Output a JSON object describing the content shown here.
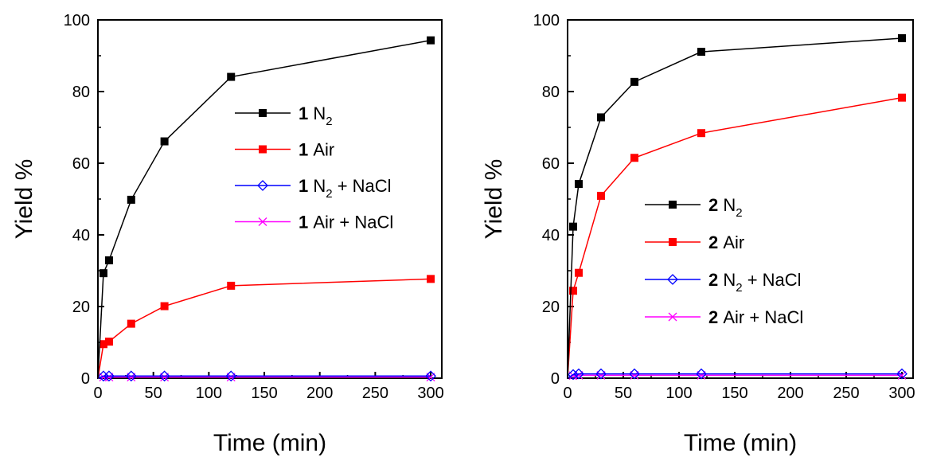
{
  "chart_data": [
    {
      "type": "line",
      "xlabel": "Time (min)",
      "ylabel": "Yield %",
      "xlim": [
        0,
        310
      ],
      "ylim": [
        0,
        100
      ],
      "xticks": [
        "0",
        "50",
        "100",
        "150",
        "200",
        "250",
        "300"
      ],
      "yticks": [
        "0",
        "20",
        "40",
        "60",
        "80",
        "100"
      ],
      "legend_position": "center-right",
      "series": [
        {
          "id": "1",
          "subscript": "",
          "name_text": "Air + NaCl",
          "marker": "x",
          "color": "#ff00ff",
          "x": [
            0,
            5,
            10,
            30,
            60,
            120,
            300
          ],
          "y": [
            0,
            0.3,
            0.3,
            0.3,
            0.3,
            0.3,
            0.3
          ]
        },
        {
          "id": "1",
          "subscript": "2",
          "name_text": "N",
          "name_suffix": " + NaCl",
          "marker": "diamond",
          "color": "#0000ff",
          "x": [
            0,
            5,
            10,
            30,
            60,
            120,
            300
          ],
          "y": [
            0,
            0.6,
            0.6,
            0.6,
            0.6,
            0.6,
            0.6
          ]
        },
        {
          "id": "1",
          "subscript": "",
          "name_text": "Air",
          "marker": "square",
          "color": "#ff0000",
          "x": [
            0,
            5,
            10,
            30,
            60,
            120,
            300
          ],
          "y": [
            0,
            9.5,
            10.2,
            15.2,
            20.1,
            25.8,
            27.7
          ]
        },
        {
          "id": "1",
          "subscript": "2",
          "name_text": "N",
          "name_suffix": "",
          "marker": "square",
          "color": "#000000",
          "x": [
            0,
            5,
            10,
            30,
            60,
            120,
            300
          ],
          "y": [
            0,
            29.3,
            32.9,
            49.8,
            66.1,
            84.1,
            94.3
          ]
        }
      ],
      "legend_order": [
        3,
        2,
        1,
        0
      ]
    },
    {
      "type": "line",
      "xlabel": "Time (min)",
      "ylabel": "Yield %",
      "xlim": [
        0,
        310
      ],
      "ylim": [
        0,
        100
      ],
      "xticks": [
        "0",
        "50",
        "100",
        "150",
        "200",
        "250",
        "300"
      ],
      "yticks": [
        "0",
        "20",
        "40",
        "60",
        "80",
        "100"
      ],
      "legend_position": "center-right",
      "series": [
        {
          "id": "2",
          "subscript": "",
          "name_text": "Air + NaCl",
          "marker": "x",
          "color": "#ff00ff",
          "x": [
            0,
            5,
            10,
            30,
            60,
            120,
            300
          ],
          "y": [
            0,
            0.7,
            0.8,
            0.8,
            0.8,
            0.8,
            0.8
          ]
        },
        {
          "id": "2",
          "subscript": "2",
          "name_text": "N",
          "name_suffix": " + NaCl",
          "marker": "diamond",
          "color": "#0000ff",
          "x": [
            0,
            5,
            10,
            30,
            60,
            120,
            300
          ],
          "y": [
            0,
            1.0,
            1.2,
            1.2,
            1.2,
            1.2,
            1.2
          ]
        },
        {
          "id": "2",
          "subscript": "",
          "name_text": "Air",
          "marker": "square",
          "color": "#ff0000",
          "x": [
            0,
            5,
            10,
            30,
            60,
            120,
            300
          ],
          "y": [
            0,
            24.4,
            29.4,
            50.9,
            61.5,
            68.4,
            78.3
          ]
        },
        {
          "id": "2",
          "subscript": "2",
          "name_text": "N",
          "name_suffix": "",
          "marker": "square",
          "color": "#000000",
          "x": [
            0,
            5,
            10,
            30,
            60,
            120,
            300
          ],
          "y": [
            0,
            42.3,
            54.2,
            72.8,
            82.7,
            91.1,
            94.9
          ]
        }
      ],
      "legend_order": [
        3,
        2,
        1,
        0
      ]
    }
  ]
}
